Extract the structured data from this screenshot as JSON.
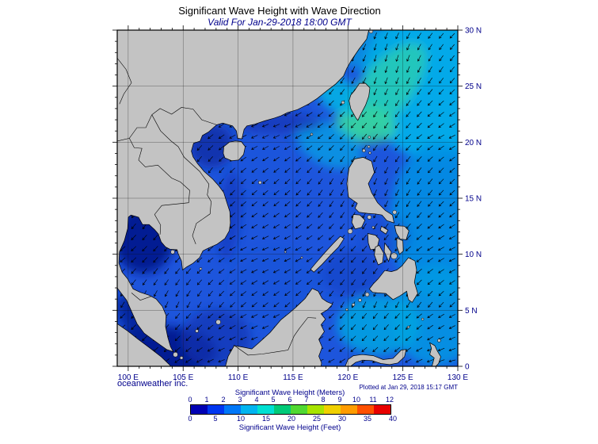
{
  "title": "Significant Wave Height with Wave Direction",
  "subtitle": "Valid For Jan-29-2018 18:00 GMT",
  "credit": "oceanweather inc.",
  "plotted": "Plotted at Jan 29, 2018 15:17 GMT",
  "map": {
    "x_ticks": [
      "100 E",
      "105 E",
      "110 E",
      "115 E",
      "120 E",
      "125 E",
      "130 E"
    ],
    "y_ticks": [
      "30 N",
      "25 N",
      "20 N",
      "15 N",
      "10 N",
      "5 N",
      "0"
    ]
  },
  "legend": {
    "meters_label": "Significant Wave Height (Meters)",
    "feet_label": "Significant Wave Height (Feet)",
    "meters_ticks": [
      "0",
      "1",
      "2",
      "3",
      "4",
      "5",
      "6",
      "7",
      "8",
      "9",
      "10",
      "11",
      "12"
    ],
    "feet_ticks": [
      "0",
      "5",
      "10",
      "15",
      "20",
      "25",
      "30",
      "35",
      "40"
    ],
    "colors": [
      "#0000b4",
      "#0036f0",
      "#0077f8",
      "#00b4f0",
      "#00e0d2",
      "#00ca78",
      "#50d832",
      "#a8e400",
      "#f0d000",
      "#ff9c00",
      "#ff5000",
      "#e80000"
    ]
  },
  "colors": {
    "accent_navy": "#00008b",
    "land": "#c3c3c3",
    "ocean_base": "#1d55dc"
  }
}
